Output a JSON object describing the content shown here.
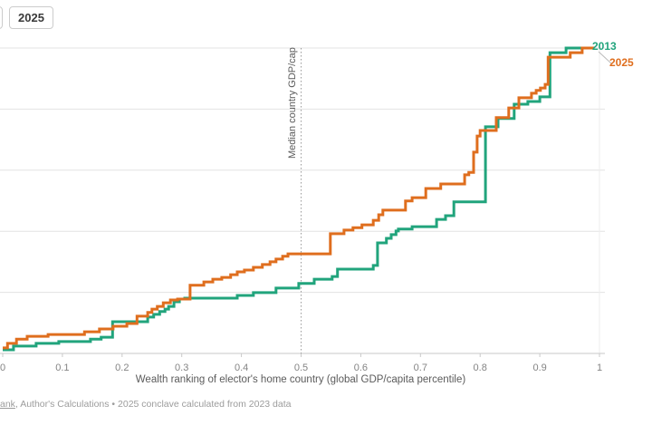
{
  "toolbar": {
    "active_tab_label": "2025",
    "fragment_tab_label": ""
  },
  "legend": {
    "label_2013": "2013",
    "label_2025": "2025"
  },
  "axis": {
    "x_title": "Wealth ranking of elector's home country (global GDP/capita percentile)"
  },
  "annotation": {
    "median_line_label": "Median country GDP/cap"
  },
  "footer": {
    "source_link_fragment": "ank",
    "source_rest": ", Author's Calculations",
    "separator": " • ",
    "note": "2025 conclave calculated from 2023 data"
  },
  "colors": {
    "series_2013": "#21a47c",
    "series_2025": "#df6e1e",
    "gridline": "#e3e3e3",
    "axis_line": "#c9c9c9",
    "median_line": "#9a9a9a",
    "leader_line": "#bbbbbb"
  },
  "chart_data": {
    "type": "line",
    "subtype": "step-after",
    "title": "",
    "xlabel": "Wealth ranking of elector's home country (global GDP/capita percentile)",
    "ylabel": "",
    "xlim": [
      0,
      1
    ],
    "ylim": [
      0,
      1
    ],
    "x_ticks": [
      "0",
      "0.1",
      "0.2",
      "0.3",
      "0.4",
      "0.5",
      "0.6",
      "0.7",
      "0.8",
      "0.9",
      "1"
    ],
    "y_gridlines": [
      0.2,
      0.4,
      0.6,
      0.8,
      1.0
    ],
    "grid": "horizontal",
    "legend_position": "end-of-line",
    "median_x": 0.5,
    "series": [
      {
        "name": "2013",
        "color": "#21a47c",
        "points": [
          [
            0.0,
            0.012
          ],
          [
            0.018,
            0.024
          ],
          [
            0.056,
            0.033
          ],
          [
            0.094,
            0.039
          ],
          [
            0.147,
            0.047
          ],
          [
            0.165,
            0.053
          ],
          [
            0.184,
            0.104
          ],
          [
            0.243,
            0.119
          ],
          [
            0.253,
            0.128
          ],
          [
            0.263,
            0.137
          ],
          [
            0.272,
            0.145
          ],
          [
            0.278,
            0.154
          ],
          [
            0.287,
            0.169
          ],
          [
            0.296,
            0.178
          ],
          [
            0.305,
            0.181
          ],
          [
            0.393,
            0.19
          ],
          [
            0.42,
            0.199
          ],
          [
            0.458,
            0.214
          ],
          [
            0.496,
            0.229
          ],
          [
            0.522,
            0.243
          ],
          [
            0.552,
            0.252
          ],
          [
            0.561,
            0.276
          ],
          [
            0.621,
            0.288
          ],
          [
            0.628,
            0.362
          ],
          [
            0.643,
            0.377
          ],
          [
            0.651,
            0.389
          ],
          [
            0.659,
            0.401
          ],
          [
            0.663,
            0.407
          ],
          [
            0.686,
            0.415
          ],
          [
            0.727,
            0.439
          ],
          [
            0.742,
            0.451
          ],
          [
            0.756,
            0.496
          ],
          [
            0.809,
            0.742
          ],
          [
            0.83,
            0.769
          ],
          [
            0.857,
            0.816
          ],
          [
            0.88,
            0.825
          ],
          [
            0.9,
            0.84
          ],
          [
            0.917,
            0.985
          ],
          [
            0.944,
            1.0
          ],
          [
            0.991,
            1.0
          ]
        ]
      },
      {
        "name": "2025",
        "color": "#df6e1e",
        "points": [
          [
            0.0,
            0.018
          ],
          [
            0.008,
            0.033
          ],
          [
            0.023,
            0.047
          ],
          [
            0.041,
            0.056
          ],
          [
            0.076,
            0.062
          ],
          [
            0.137,
            0.071
          ],
          [
            0.162,
            0.08
          ],
          [
            0.185,
            0.089
          ],
          [
            0.208,
            0.098
          ],
          [
            0.225,
            0.122
          ],
          [
            0.243,
            0.134
          ],
          [
            0.25,
            0.145
          ],
          [
            0.259,
            0.154
          ],
          [
            0.269,
            0.166
          ],
          [
            0.281,
            0.175
          ],
          [
            0.293,
            0.178
          ],
          [
            0.314,
            0.223
          ],
          [
            0.337,
            0.234
          ],
          [
            0.352,
            0.243
          ],
          [
            0.367,
            0.249
          ],
          [
            0.382,
            0.258
          ],
          [
            0.393,
            0.267
          ],
          [
            0.405,
            0.273
          ],
          [
            0.42,
            0.282
          ],
          [
            0.435,
            0.291
          ],
          [
            0.448,
            0.3
          ],
          [
            0.458,
            0.309
          ],
          [
            0.469,
            0.318
          ],
          [
            0.478,
            0.326
          ],
          [
            0.549,
            0.392
          ],
          [
            0.572,
            0.404
          ],
          [
            0.587,
            0.412
          ],
          [
            0.602,
            0.421
          ],
          [
            0.621,
            0.436
          ],
          [
            0.63,
            0.454
          ],
          [
            0.637,
            0.469
          ],
          [
            0.675,
            0.499
          ],
          [
            0.686,
            0.51
          ],
          [
            0.709,
            0.54
          ],
          [
            0.734,
            0.555
          ],
          [
            0.774,
            0.585
          ],
          [
            0.781,
            0.593
          ],
          [
            0.789,
            0.659
          ],
          [
            0.795,
            0.712
          ],
          [
            0.8,
            0.73
          ],
          [
            0.827,
            0.772
          ],
          [
            0.848,
            0.804
          ],
          [
            0.865,
            0.837
          ],
          [
            0.886,
            0.852
          ],
          [
            0.894,
            0.861
          ],
          [
            0.901,
            0.869
          ],
          [
            0.909,
            0.881
          ],
          [
            0.914,
            0.97
          ],
          [
            0.951,
            0.985
          ],
          [
            0.971,
            1.0
          ],
          [
            0.991,
            1.0
          ]
        ]
      }
    ]
  }
}
